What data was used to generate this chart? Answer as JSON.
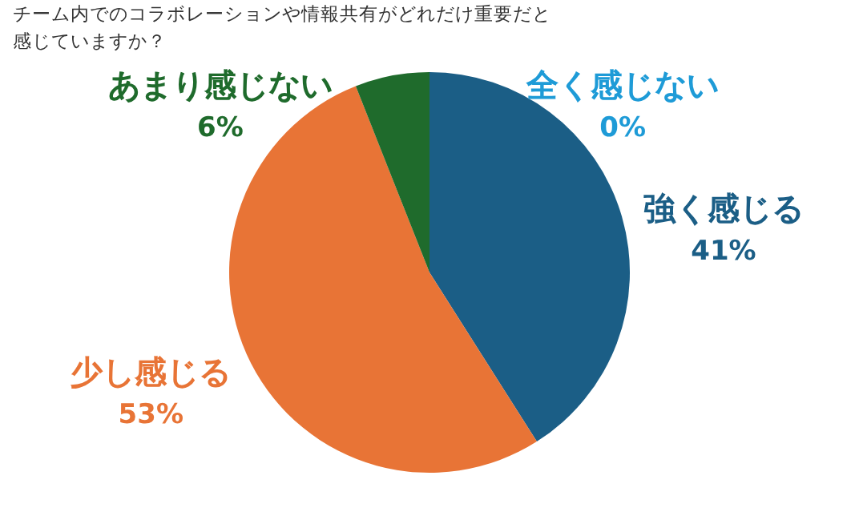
{
  "chart_data": {
    "type": "pie",
    "title": "チーム内でのコラボレーションや情報共有がどれだけ重要だと感じていますか？",
    "categories": [
      "全く感じない",
      "強く感じる",
      "少し感じる",
      "あまり感じない"
    ],
    "values": [
      0,
      41,
      53,
      6
    ],
    "value_labels": [
      "0%",
      "41%",
      "53%",
      "6%"
    ],
    "colors": [
      "#1e9bd7",
      "#1b5e86",
      "#e87436",
      "#1f6b2c"
    ]
  }
}
